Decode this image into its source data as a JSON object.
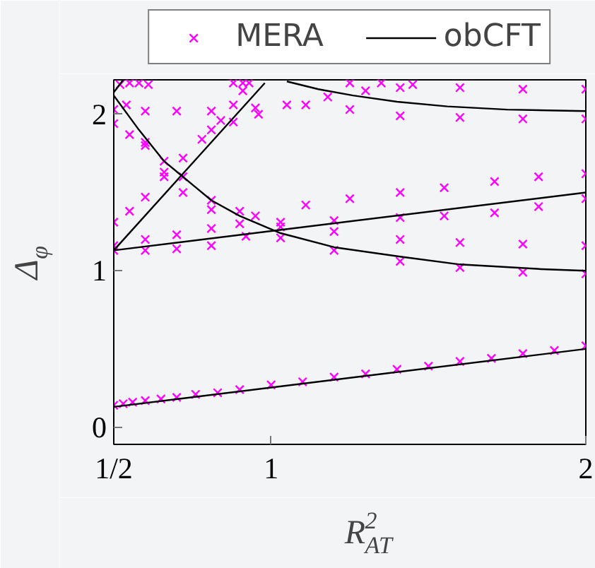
{
  "chart_data": {
    "type": "scatter",
    "xlabel": "R$^{2}$$_{AT}$",
    "ylabel": "Δ$_{φ}$",
    "xlim": [
      0.5,
      2
    ],
    "ylim": [
      -0.11,
      2.22
    ],
    "xticks": [
      {
        "value": 0.5,
        "label": "1/2"
      },
      1,
      2
    ],
    "yticks": [
      0,
      1,
      2
    ],
    "legend": "top",
    "grid": false,
    "series": [
      {
        "name": "MERA",
        "marker": "cross",
        "color": "#ff00ff",
        "x": [
          0.5,
          0.53,
          0.56,
          0.6,
          0.65,
          0.7,
          0.76,
          0.83,
          0.9,
          1.0,
          1.1,
          1.2,
          1.3,
          1.4,
          1.5,
          1.6,
          1.7,
          1.8,
          1.9,
          2.0,
          0.5,
          0.55,
          0.6,
          0.66,
          0.72,
          0.78,
          0.84,
          0.88,
          0.91,
          0.93,
          0.5,
          0.6,
          0.7,
          0.81,
          0.95,
          1.11,
          1.25,
          1.41,
          1.55,
          1.71,
          1.85,
          2.0,
          0.5,
          0.6,
          0.7,
          0.81,
          0.92,
          1.03,
          1.2,
          1.41,
          1.55,
          1.71,
          1.85,
          2.0,
          0.5,
          0.55,
          0.6,
          0.66,
          0.72,
          0.81,
          0.9,
          1.03,
          1.2,
          1.41,
          1.6,
          1.8,
          2.0,
          0.54,
          0.6,
          0.66,
          0.72,
          0.81,
          0.9,
          1.03,
          1.2,
          1.41,
          1.6,
          1.8,
          2.0,
          0.5,
          0.6,
          0.7,
          0.81,
          0.95,
          1.11,
          1.25,
          1.41,
          1.6,
          1.8,
          2.0,
          0.81,
          0.88,
          0.96,
          1.05,
          1.18,
          1.3,
          1.41,
          1.6,
          1.8,
          2.0,
          0.52,
          0.55,
          0.58,
          0.61,
          0.88,
          0.91,
          1.25,
          1.35,
          1.45
        ],
        "values": [
          0.14,
          0.15,
          0.16,
          0.17,
          0.18,
          0.19,
          0.21,
          0.22,
          0.24,
          0.27,
          0.29,
          0.32,
          0.34,
          0.37,
          0.39,
          0.42,
          0.44,
          0.47,
          0.49,
          0.52,
          1.31,
          1.38,
          1.47,
          1.6,
          1.72,
          1.84,
          1.96,
          2.06,
          2.15,
          2.2,
          1.16,
          1.2,
          1.23,
          1.27,
          1.35,
          1.42,
          1.46,
          1.5,
          1.53,
          1.57,
          1.6,
          1.62,
          1.13,
          1.13,
          1.14,
          1.16,
          1.22,
          1.28,
          1.32,
          1.34,
          1.35,
          1.37,
          1.41,
          1.46,
          1.94,
          1.87,
          1.8,
          1.7,
          1.6,
          1.45,
          1.38,
          1.31,
          1.25,
          1.2,
          1.18,
          1.17,
          1.16,
          2.06,
          1.82,
          1.63,
          1.5,
          1.39,
          1.3,
          1.21,
          1.13,
          1.06,
          1.02,
          0.99,
          0.98,
          2.03,
          2.02,
          2.02,
          2.02,
          2.04,
          2.06,
          2.03,
          1.99,
          1.98,
          1.97,
          1.97,
          1.9,
          1.95,
          2.0,
          2.06,
          2.11,
          2.15,
          2.17,
          2.17,
          2.16,
          2.16,
          2.19,
          2.2,
          2.2,
          2.19,
          2.2,
          2.2,
          2.2,
          2.2,
          2.19
        ]
      },
      {
        "name": "obCFT",
        "type": "line",
        "line_style": "solid",
        "color": "#000000",
        "x": [
          0.5,
          2
        ],
        "values": [
          0.13,
          0.5
        ]
      },
      {
        "type": "line",
        "line_style": "solid",
        "color": "#000000",
        "x": [
          0.5,
          2
        ],
        "values": [
          1.13,
          1.5
        ]
      },
      {
        "type": "line",
        "line_style": "solid",
        "color": "#000000",
        "x": [
          0.5,
          0.98
        ],
        "values": [
          1.13,
          2.2
        ]
      },
      {
        "type": "line",
        "line_style": "solid",
        "color": "#000000",
        "x": [
          0.5,
          0.58,
          0.66,
          0.75,
          0.81,
          0.9,
          1.03,
          1.2,
          1.41,
          1.6,
          1.86,
          2.0
        ],
        "values": [
          2.12,
          1.9,
          1.7,
          1.55,
          1.45,
          1.35,
          1.24,
          1.15,
          1.09,
          1.04,
          1.01,
          1.0
        ]
      },
      {
        "type": "line",
        "line_style": "solid",
        "color": "#000000",
        "x": [
          1.05,
          1.15,
          1.26,
          1.4,
          1.56,
          1.75,
          2.0
        ],
        "values": [
          2.21,
          2.16,
          2.12,
          2.08,
          2.05,
          2.03,
          2.02
        ]
      },
      {
        "type": "line",
        "line_style": "solid",
        "color": "#000000",
        "x": [
          0.5,
          0.53
        ],
        "values": [
          2.14,
          2.22
        ]
      }
    ]
  }
}
